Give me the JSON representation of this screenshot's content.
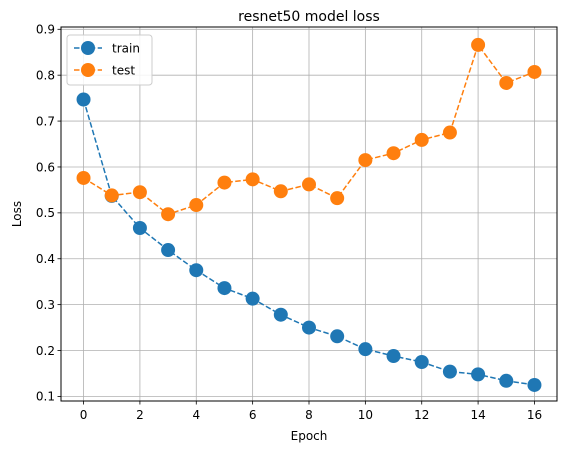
{
  "chart_data": {
    "type": "line",
    "title": "resnet50 model loss",
    "xlabel": "Epoch",
    "ylabel": "Loss",
    "x": [
      0,
      1,
      2,
      3,
      4,
      5,
      6,
      7,
      8,
      9,
      10,
      11,
      12,
      13,
      14,
      15,
      16
    ],
    "xlim": [
      -0.8,
      16.8
    ],
    "ylim": [
      0.09,
      0.905
    ],
    "xticks": [
      0,
      2,
      4,
      6,
      8,
      10,
      12,
      14,
      16
    ],
    "yticks": [
      0.1,
      0.2,
      0.3,
      0.4,
      0.5,
      0.6,
      0.7,
      0.8,
      0.9
    ],
    "grid": true,
    "legend_position": "top-left",
    "series": [
      {
        "name": "train",
        "color": "#1f77b4",
        "linestyle": "dashed",
        "marker": "circle",
        "values": [
          0.747,
          0.537,
          0.467,
          0.419,
          0.375,
          0.336,
          0.313,
          0.278,
          0.25,
          0.231,
          0.203,
          0.188,
          0.175,
          0.154,
          0.148,
          0.134,
          0.125
        ]
      },
      {
        "name": "test",
        "color": "#ff7f0e",
        "linestyle": "dashed",
        "marker": "circle",
        "values": [
          0.576,
          0.538,
          0.545,
          0.497,
          0.517,
          0.566,
          0.573,
          0.547,
          0.562,
          0.532,
          0.615,
          0.63,
          0.659,
          0.675,
          0.866,
          0.783,
          0.807
        ]
      }
    ]
  }
}
